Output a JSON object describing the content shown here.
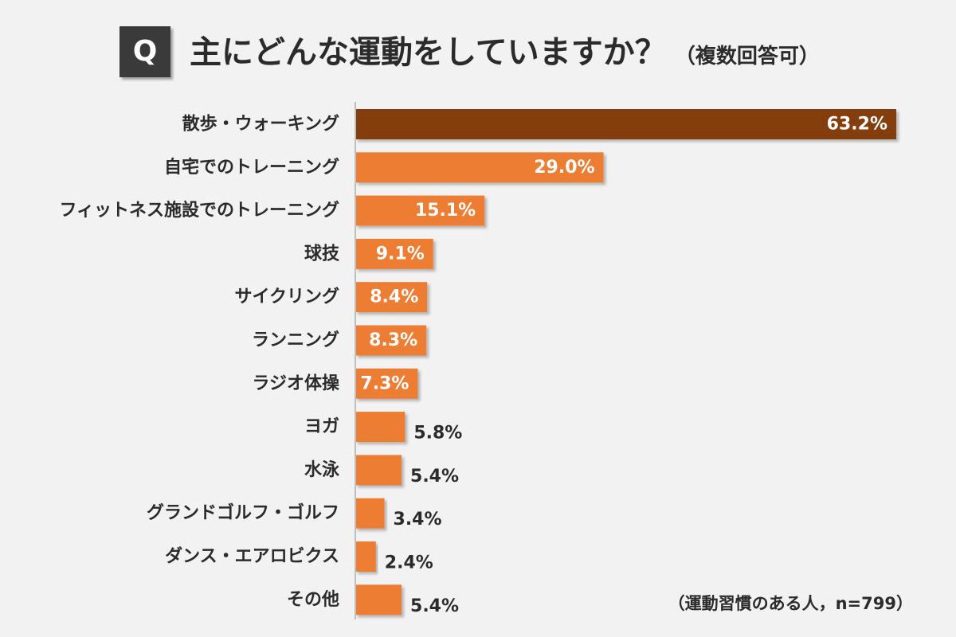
{
  "header": {
    "q_label": "Q",
    "title": "主にどんな運動をしていますか？",
    "title_note": "（複数回答可）"
  },
  "footer": {
    "sample_note": "（運動習慣のある人，n=799）"
  },
  "colors": {
    "background": "#f2f2f2",
    "highlight_bar": "#843c0c",
    "bar": "#ed7d31",
    "axis": "#bfbfbf",
    "label_inside": "#ffffff",
    "label_outside": "#2b2b2b"
  },
  "chart_data": {
    "type": "bar",
    "orientation": "horizontal",
    "title": "主にどんな運動をしていますか？（複数回答可）",
    "xlabel": "",
    "ylabel": "",
    "unit": "%",
    "xlim": [
      0,
      63.2
    ],
    "categories": [
      "散歩・ウォーキング",
      "自宅でのトレーニング",
      "フィットネス施設でのトレーニング",
      "球技",
      "サイクリング",
      "ランニング",
      "ラジオ体操",
      "ヨガ",
      "水泳",
      "グランドゴルフ・ゴルフ",
      "ダンス・エアロビクス",
      "その他"
    ],
    "values": [
      63.2,
      29.0,
      15.1,
      9.1,
      8.4,
      8.3,
      7.3,
      5.8,
      5.4,
      3.4,
      2.4,
      5.4
    ],
    "value_labels": [
      "63.2%",
      "29.0%",
      "15.1%",
      "9.1%",
      "8.4%",
      "8.3%",
      "7.3%",
      "5.8%",
      "5.4%",
      "3.4%",
      "2.4%",
      "5.4%"
    ],
    "highlight_index": 0,
    "note": "（運動習慣のある人，n=799）"
  }
}
